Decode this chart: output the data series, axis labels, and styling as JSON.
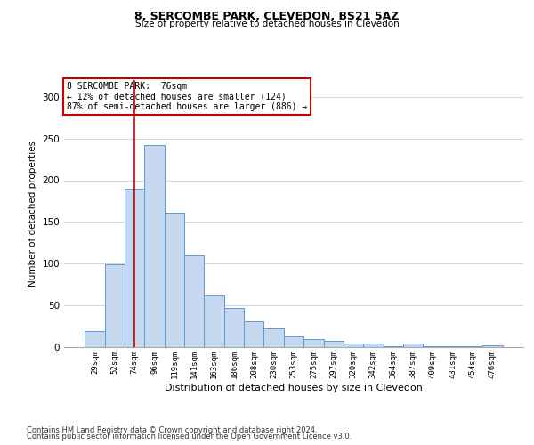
{
  "title1": "8, SERCOMBE PARK, CLEVEDON, BS21 5AZ",
  "title2": "Size of property relative to detached houses in Clevedon",
  "xlabel": "Distribution of detached houses by size in Clevedon",
  "ylabel": "Number of detached properties",
  "categories": [
    "29sqm",
    "52sqm",
    "74sqm",
    "96sqm",
    "119sqm",
    "141sqm",
    "163sqm",
    "186sqm",
    "208sqm",
    "230sqm",
    "253sqm",
    "275sqm",
    "297sqm",
    "320sqm",
    "342sqm",
    "364sqm",
    "387sqm",
    "409sqm",
    "431sqm",
    "454sqm",
    "476sqm"
  ],
  "values": [
    19,
    99,
    190,
    242,
    161,
    110,
    62,
    47,
    31,
    22,
    13,
    10,
    7,
    4,
    4,
    1,
    4,
    1,
    1,
    1,
    2
  ],
  "bar_color": "#c5d8f0",
  "bar_edge_color": "#5b9bd5",
  "vline_x": 2,
  "vline_color": "#cc0000",
  "annotation_text": "8 SERCOMBE PARK:  76sqm\n← 12% of detached houses are smaller (124)\n87% of semi-detached houses are larger (886) →",
  "annotation_box_color": "#ffffff",
  "annotation_box_edge": "#cc0000",
  "footer1": "Contains HM Land Registry data © Crown copyright and database right 2024.",
  "footer2": "Contains public sector information licensed under the Open Government Licence v3.0.",
  "ylim": [
    0,
    320
  ],
  "yticks": [
    0,
    50,
    100,
    150,
    200,
    250,
    300
  ],
  "background_color": "#ffffff",
  "grid_color": "#d0d8e8"
}
